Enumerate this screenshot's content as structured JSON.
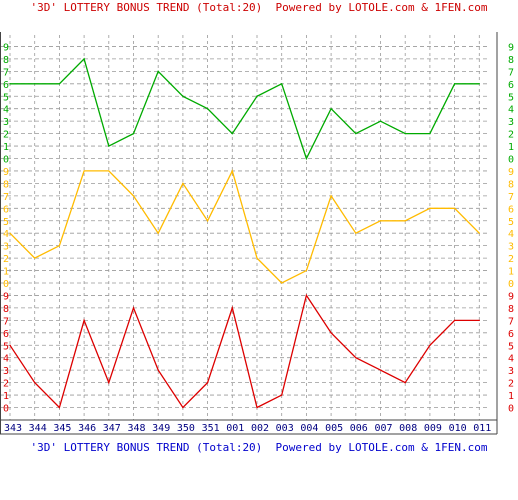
{
  "titles": {
    "top": "'3D' LOTTERY BONUS TREND (Total:20)  Powered by LOTOLE.com & 1FEN.com",
    "bottom": "'3D' LOTTERY BONUS TREND (Total:20)  Powered by LOTOLE.com & 1FEN.com"
  },
  "colors": {
    "top_title": "#cc0000",
    "bottom_title": "#0000cc",
    "green": "#00aa00",
    "orange": "#ffbb00",
    "red": "#dd0000",
    "grid": "#999999",
    "ticks": "#000080"
  },
  "chart_data": {
    "type": "line",
    "categories": [
      "343",
      "344",
      "345",
      "346",
      "347",
      "348",
      "349",
      "350",
      "351",
      "001",
      "002",
      "003",
      "004",
      "005",
      "006",
      "007",
      "008",
      "009",
      "010",
      "011"
    ],
    "digit_labels": [
      "0",
      "1",
      "2",
      "3",
      "4",
      "5",
      "6",
      "7",
      "8",
      "9"
    ],
    "panels": [
      {
        "color": "green",
        "ylim": [
          0,
          9
        ],
        "values": [
          6,
          6,
          6,
          8,
          1,
          2,
          7,
          5,
          4,
          2,
          5,
          6,
          0,
          4,
          2,
          3,
          2,
          2,
          6,
          6
        ]
      },
      {
        "color": "orange",
        "ylim": [
          0,
          9
        ],
        "values": [
          4,
          2,
          3,
          9,
          9,
          7,
          4,
          8,
          5,
          9,
          2,
          0,
          1,
          7,
          4,
          5,
          5,
          6,
          6,
          4
        ]
      },
      {
        "color": "red",
        "ylim": [
          0,
          9
        ],
        "values": [
          5,
          2,
          0,
          7,
          2,
          8,
          3,
          0,
          2,
          8,
          0,
          1,
          9,
          6,
          4,
          3,
          2,
          5,
          7,
          7
        ]
      }
    ],
    "grid": true
  }
}
